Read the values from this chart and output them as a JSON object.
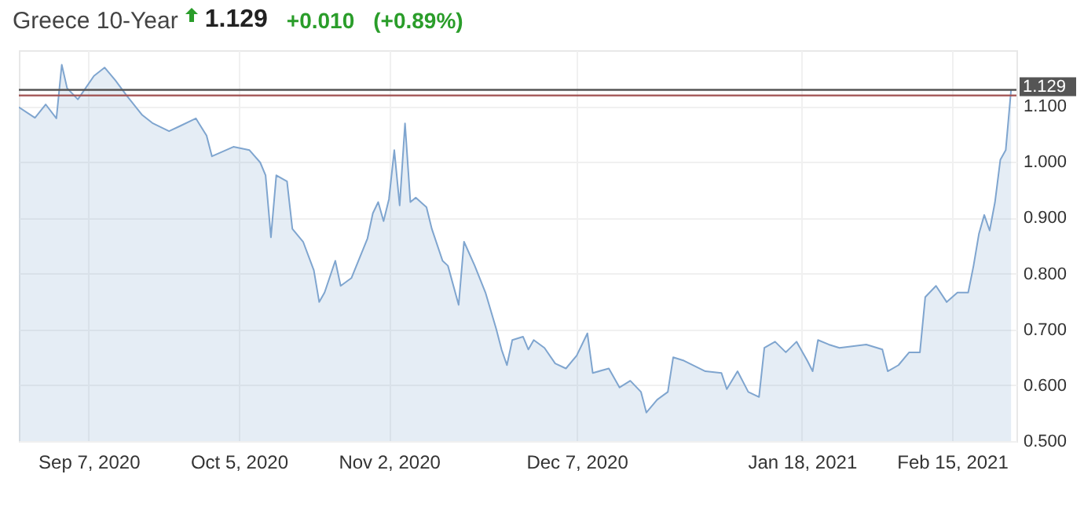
{
  "chart_data": {
    "type": "area",
    "title": "Greece 10-Year",
    "annotations": [
      "1.129",
      "+0.010",
      "(+0.89%)"
    ],
    "x": [
      "2020-08-25",
      "2020-08-28",
      "2020-08-30",
      "2020-09-01",
      "2020-09-02",
      "2020-09-03",
      "2020-09-05",
      "2020-09-08",
      "2020-09-10",
      "2020-09-12",
      "2020-09-14",
      "2020-09-17",
      "2020-09-19",
      "2020-09-22",
      "2020-09-24",
      "2020-09-27",
      "2020-09-29",
      "2020-09-30",
      "2020-10-04",
      "2020-10-07",
      "2020-10-09",
      "2020-10-10",
      "2020-10-11",
      "2020-10-12",
      "2020-10-14",
      "2020-10-15",
      "2020-10-17",
      "2020-10-19",
      "2020-10-20",
      "2020-10-21",
      "2020-10-23",
      "2020-10-24",
      "2020-10-26",
      "2020-10-29",
      "2020-10-30",
      "2020-10-31",
      "2020-11-01",
      "2020-11-02",
      "2020-11-03",
      "2020-11-04",
      "2020-11-05",
      "2020-11-06",
      "2020-11-07",
      "2020-11-09",
      "2020-11-10",
      "2020-11-12",
      "2020-11-13",
      "2020-11-15",
      "2020-11-16",
      "2020-11-18",
      "2020-11-20",
      "2020-11-22",
      "2020-11-23",
      "2020-11-24",
      "2020-11-25",
      "2020-11-27",
      "2020-11-28",
      "2020-11-29",
      "2020-12-01",
      "2020-12-03",
      "2020-12-05",
      "2020-12-07",
      "2020-12-09",
      "2020-12-10",
      "2020-12-13",
      "2020-12-15",
      "2020-12-17",
      "2020-12-19",
      "2020-12-20",
      "2020-12-22",
      "2020-12-24",
      "2020-12-25",
      "2020-12-27",
      "2020-12-31",
      "2021-01-03",
      "2021-01-04",
      "2021-01-06",
      "2021-01-08",
      "2021-01-10",
      "2021-01-11",
      "2021-01-13",
      "2021-01-15",
      "2021-01-17",
      "2021-01-19",
      "2021-01-20",
      "2021-01-21",
      "2021-01-23",
      "2021-01-25",
      "2021-01-30",
      "2021-02-02",
      "2021-02-03",
      "2021-02-05",
      "2021-02-07",
      "2021-02-09",
      "2021-02-10",
      "2021-02-12",
      "2021-02-14",
      "2021-02-16",
      "2021-02-18",
      "2021-02-19",
      "2021-02-20",
      "2021-02-21",
      "2021-02-22",
      "2021-02-23",
      "2021-02-24",
      "2021-02-25",
      "2021-02-26"
    ],
    "series": [
      {
        "color": "#7fa5cf",
        "values": [
          1.098,
          1.079,
          1.103,
          1.078,
          1.174,
          1.132,
          1.112,
          1.154,
          1.169,
          1.146,
          1.12,
          1.084,
          1.069,
          1.055,
          1.064,
          1.078,
          1.047,
          1.01,
          1.027,
          1.021,
          0.999,
          0.976,
          0.865,
          0.976,
          0.965,
          0.88,
          0.857,
          0.806,
          0.749,
          0.766,
          0.823,
          0.778,
          0.792,
          0.863,
          0.908,
          0.928,
          0.894,
          0.933,
          1.021,
          0.922,
          1.069,
          0.928,
          0.936,
          0.919,
          0.88,
          0.823,
          0.814,
          0.744,
          0.857,
          0.814,
          0.766,
          0.701,
          0.664,
          0.636,
          0.681,
          0.687,
          0.664,
          0.681,
          0.667,
          0.639,
          0.63,
          0.653,
          0.693,
          0.622,
          0.63,
          0.596,
          0.608,
          0.588,
          0.551,
          0.574,
          0.588,
          0.65,
          0.644,
          0.625,
          0.622,
          0.593,
          0.625,
          0.588,
          0.579,
          0.667,
          0.678,
          0.659,
          0.678,
          0.644,
          0.625,
          0.681,
          0.673,
          0.667,
          0.673,
          0.664,
          0.625,
          0.636,
          0.659,
          0.659,
          0.758,
          0.778,
          0.749,
          0.766,
          0.766,
          0.814,
          0.871,
          0.905,
          0.877,
          0.928,
          1.004,
          1.021,
          1.129
        ]
      }
    ],
    "xlim": [
      "2020-08-25",
      "2021-02-27"
    ],
    "xticks": [
      {
        "value": "2020-09-07",
        "label": "Sep 7, 2020"
      },
      {
        "value": "2020-10-05",
        "label": "Oct 5, 2020"
      },
      {
        "value": "2020-11-02",
        "label": "Nov 2, 2020"
      },
      {
        "value": "2020-12-07",
        "label": "Dec 7, 2020"
      },
      {
        "value": "2021-01-18",
        "label": "Jan 18, 2021"
      },
      {
        "value": "2021-02-15",
        "label": "Feb 15, 2021"
      }
    ],
    "ylim": [
      0.5,
      1.2
    ],
    "yticks": [
      {
        "value": 0.5,
        "label": "0.500"
      },
      {
        "value": 0.6,
        "label": "0.600"
      },
      {
        "value": 0.7,
        "label": "0.700"
      },
      {
        "value": 0.8,
        "label": "0.800"
      },
      {
        "value": 0.9,
        "label": "0.900"
      },
      {
        "value": 1.0,
        "label": "1.000"
      },
      {
        "value": 1.1,
        "label": "1.100"
      }
    ],
    "ref_lines": [
      {
        "axis": "y",
        "value": 1.129,
        "label": "1.129",
        "color": "#555555"
      },
      {
        "axis": "y",
        "value": 1.119,
        "label": null,
        "color": "#a05050"
      }
    ],
    "grid": true
  }
}
